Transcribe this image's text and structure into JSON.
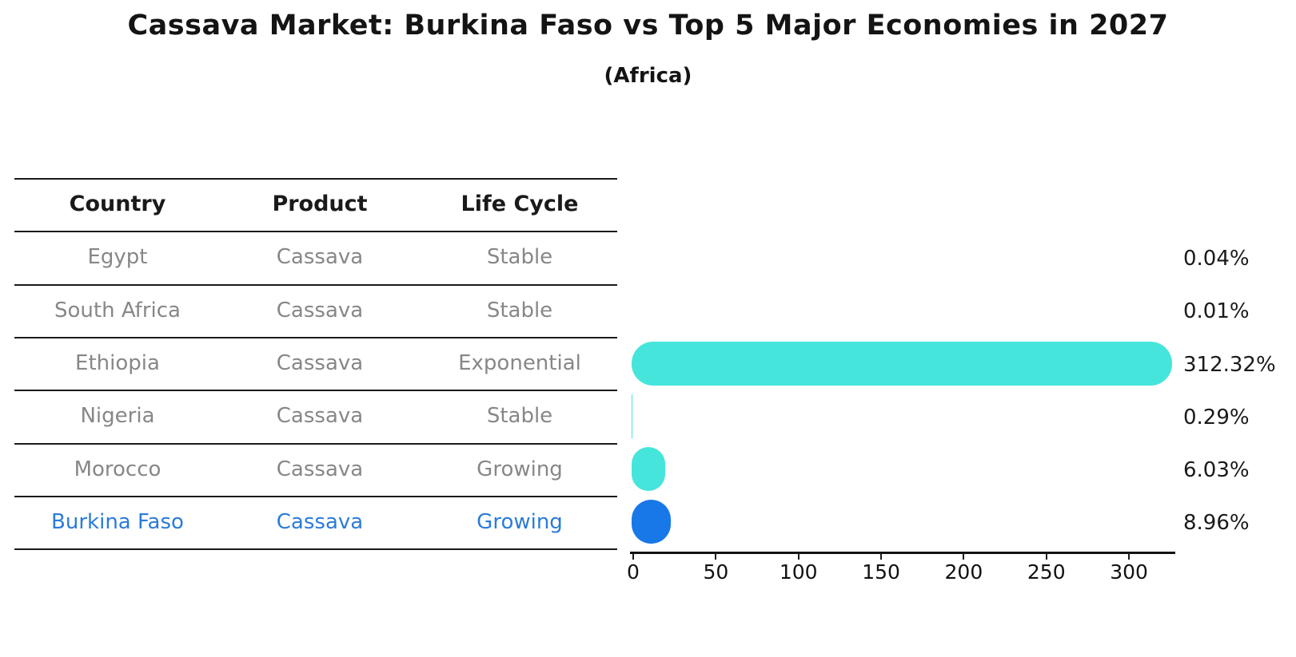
{
  "header": {
    "title": "Cassava Market: Burkina Faso vs Top 5 Major Economies in 2027",
    "subtitle": "(Africa)"
  },
  "table": {
    "headers": [
      "Country",
      "Product",
      "Life Cycle"
    ],
    "rows": [
      {
        "country": "Egypt",
        "product": "Cassava",
        "life_cycle": "Stable",
        "value_label": "0.04%",
        "highlight": false
      },
      {
        "country": "South Africa",
        "product": "Cassava",
        "life_cycle": "Stable",
        "value_label": "0.01%",
        "highlight": false
      },
      {
        "country": "Ethiopia",
        "product": "Cassava",
        "life_cycle": "Exponential",
        "value_label": "312.32%",
        "highlight": false
      },
      {
        "country": "Nigeria",
        "product": "Cassava",
        "life_cycle": "Stable",
        "value_label": "0.29%",
        "highlight": false
      },
      {
        "country": "Morocco",
        "product": "Cassava",
        "life_cycle": "Growing",
        "value_label": "6.03%",
        "highlight": false
      },
      {
        "country": "Burkina Faso",
        "product": "Cassava",
        "life_cycle": "Growing",
        "value_label": "8.96%",
        "highlight": true
      }
    ]
  },
  "chart_data": {
    "type": "bar",
    "orientation": "horizontal",
    "title": "Cassava Market: Burkina Faso vs Top 5 Major Economies in 2027",
    "subtitle": "(Africa)",
    "categories": [
      "Egypt",
      "South Africa",
      "Ethiopia",
      "Nigeria",
      "Morocco",
      "Burkina Faso"
    ],
    "values": [
      0.04,
      0.01,
      312.32,
      0.29,
      6.03,
      8.96
    ],
    "value_labels": [
      "0.04%",
      "0.01%",
      "312.32%",
      "0.29%",
      "6.03%",
      "8.96%"
    ],
    "units": "percent",
    "x_ticks": [
      0,
      50,
      100,
      150,
      200,
      250,
      300
    ],
    "xlim": [
      0,
      328
    ],
    "grid": false,
    "legend": false,
    "highlight_category": "Burkina Faso"
  },
  "colors": {
    "bar_default": "#45E5DC",
    "bar_highlight": "#1878E8",
    "text_default": "#878787",
    "text_highlight": "#2B7BD9",
    "text_dark": "#1a1a1a",
    "line": "#1a1a1a"
  }
}
